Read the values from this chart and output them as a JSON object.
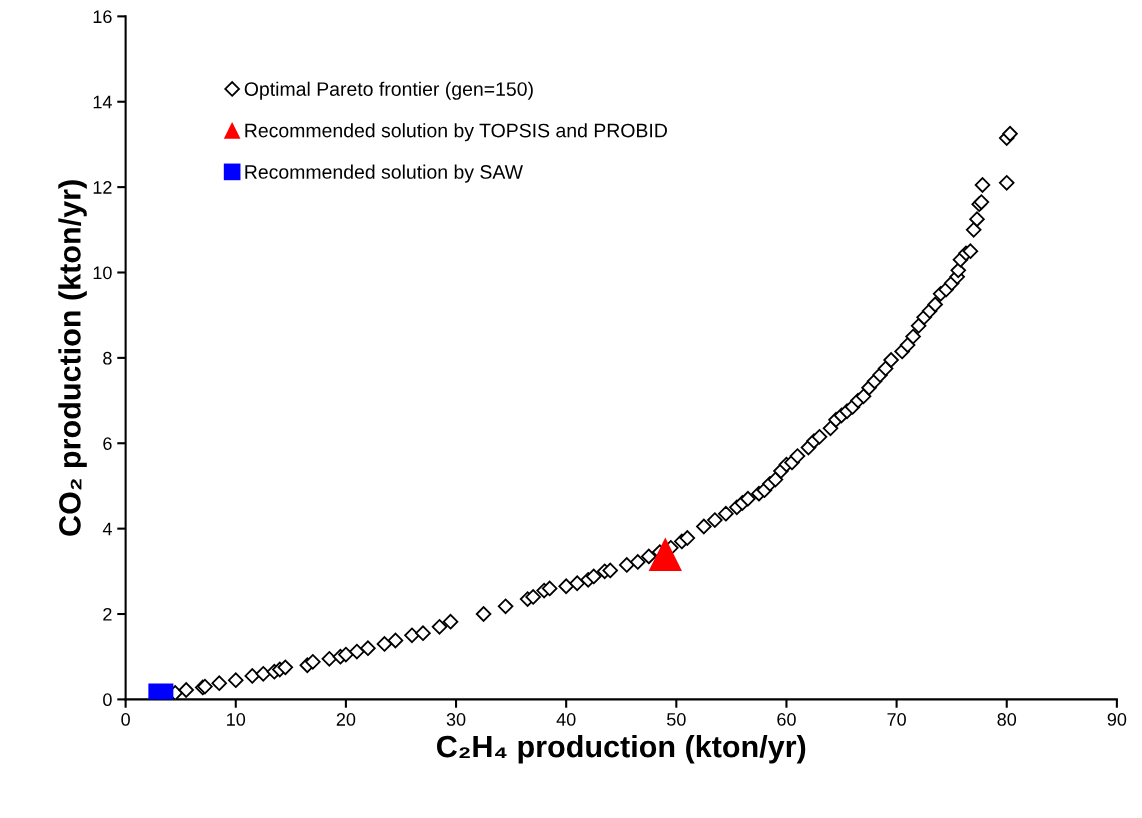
{
  "chart_data": {
    "type": "scatter",
    "xlabel": "C₂H₄ production (kton/yr)",
    "ylabel": "CO₂ production (kton/yr)",
    "xlim": [
      0,
      90
    ],
    "xticks": [
      0,
      10,
      20,
      30,
      40,
      50,
      60,
      70,
      80,
      90
    ],
    "ylim": [
      0,
      16
    ],
    "yticks": [
      0,
      2,
      4,
      6,
      8,
      10,
      12,
      14,
      16
    ],
    "grid": false,
    "legend": "top left",
    "series": [
      {
        "name": "Optimal Pareto frontier (gen=150)",
        "color": "#000000",
        "marker": "diamond",
        "x": [
          4.5,
          5.5,
          7,
          7.2,
          8.5,
          10,
          11.5,
          12.5,
          13.5,
          14,
          14.5,
          16.5,
          17,
          18.5,
          19.5,
          20,
          21,
          22,
          23.5,
          24.5,
          26,
          27,
          28.5,
          29.5,
          32.5,
          34.5,
          36.5,
          37,
          38,
          38.5,
          40,
          41,
          42,
          42.5,
          43.5,
          44,
          45.5,
          46.5,
          47.5,
          48.5,
          49.5,
          50.5,
          51,
          52.5,
          53.5,
          54.5,
          55.5,
          56,
          56.5,
          57.5,
          58,
          58.5,
          59,
          59.5,
          60,
          60.5,
          61,
          62,
          62.5,
          63,
          64,
          64.5,
          65,
          65.5,
          66,
          66.5,
          67,
          67.5,
          68,
          68.5,
          69,
          69.5,
          70.5,
          71,
          71.5,
          72,
          72.5,
          73,
          73.5,
          74,
          74.5,
          75,
          75.5,
          75.6,
          75.8,
          76.3,
          76.7,
          77,
          77.3,
          77.5,
          77.7,
          77.8,
          80,
          80,
          80.3
        ],
        "values": [
          0.15,
          0.22,
          0.28,
          0.3,
          0.38,
          0.45,
          0.55,
          0.6,
          0.65,
          0.7,
          0.75,
          0.8,
          0.88,
          0.95,
          1.0,
          1.05,
          1.12,
          1.2,
          1.3,
          1.38,
          1.5,
          1.55,
          1.7,
          1.82,
          2.0,
          2.18,
          2.35,
          2.4,
          2.55,
          2.6,
          2.65,
          2.72,
          2.8,
          2.88,
          3.0,
          3.02,
          3.15,
          3.22,
          3.35,
          3.45,
          3.55,
          3.7,
          3.78,
          4.05,
          4.2,
          4.35,
          4.5,
          4.6,
          4.7,
          4.82,
          4.9,
          5.05,
          5.15,
          5.35,
          5.5,
          5.55,
          5.7,
          5.9,
          6.05,
          6.15,
          6.35,
          6.55,
          6.65,
          6.75,
          6.85,
          7.0,
          7.1,
          7.3,
          7.45,
          7.6,
          7.75,
          7.95,
          8.15,
          8.3,
          8.5,
          8.75,
          8.95,
          9.1,
          9.25,
          9.5,
          9.6,
          9.75,
          9.9,
          10.05,
          10.3,
          10.45,
          10.5,
          11.0,
          11.25,
          11.6,
          11.65,
          12.05,
          12.1,
          13.15,
          13.25
        ]
      },
      {
        "name": "Recommended solution by TOPSIS and PROBID",
        "color": "#ff0000",
        "marker": "triangle",
        "x": [
          49
        ],
        "values": [
          3.4
        ]
      },
      {
        "name": "Recommended solution by SAW",
        "color": "#0000ff",
        "marker": "square",
        "x": [
          3.2
        ],
        "values": [
          0.08
        ]
      }
    ]
  }
}
